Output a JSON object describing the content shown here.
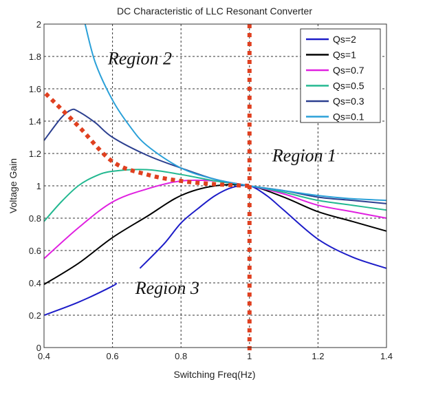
{
  "chart_data": {
    "type": "line",
    "title": "DC Characteristic of LLC Resonant Converter",
    "xlabel": "Switching Freq(Hz)",
    "ylabel": "Voltage Gain",
    "xlim": [
      0.4,
      1.4
    ],
    "ylim": [
      0,
      2
    ],
    "xticks": [
      "0.4",
      "0.6",
      "0.8",
      "1",
      "1.2",
      "1.4"
    ],
    "yticks": [
      "0",
      "0.2",
      "0.4",
      "0.6",
      "0.8",
      "1",
      "1.2",
      "1.4",
      "1.6",
      "1.8",
      "2"
    ],
    "grid": true,
    "legend_position": "top-right",
    "series": [
      {
        "name": "Qs=2",
        "color": "#1c1cc8",
        "points": [
          [
            0.4,
            0.2
          ],
          [
            0.5,
            0.28
          ],
          [
            0.6,
            0.38
          ],
          [
            0.61,
            0.4
          ],
          [
            0.68,
            0.49
          ],
          [
            0.75,
            0.64
          ],
          [
            0.8,
            0.77
          ],
          [
            0.85,
            0.86
          ],
          [
            0.9,
            0.94
          ],
          [
            0.95,
            0.99
          ],
          [
            1.0,
            1.0
          ],
          [
            1.05,
            0.94
          ],
          [
            1.1,
            0.85
          ],
          [
            1.2,
            0.67
          ],
          [
            1.3,
            0.56
          ],
          [
            1.4,
            0.49
          ]
        ],
        "gap": [
          0.61,
          0.68
        ]
      },
      {
        "name": "Qs=1",
        "color": "#000000",
        "points": [
          [
            0.4,
            0.39
          ],
          [
            0.5,
            0.52
          ],
          [
            0.6,
            0.68
          ],
          [
            0.7,
            0.81
          ],
          [
            0.8,
            0.94
          ],
          [
            0.9,
            1.0
          ],
          [
            1.0,
            1.0
          ],
          [
            1.1,
            0.93
          ],
          [
            1.2,
            0.84
          ],
          [
            1.3,
            0.78
          ],
          [
            1.4,
            0.72
          ]
        ]
      },
      {
        "name": "Qs=0.7",
        "color": "#e020e0",
        "points": [
          [
            0.4,
            0.55
          ],
          [
            0.5,
            0.74
          ],
          [
            0.6,
            0.9
          ],
          [
            0.7,
            0.98
          ],
          [
            0.8,
            1.03
          ],
          [
            0.9,
            1.03
          ],
          [
            1.0,
            1.0
          ],
          [
            1.1,
            0.95
          ],
          [
            1.2,
            0.88
          ],
          [
            1.3,
            0.84
          ],
          [
            1.4,
            0.8
          ]
        ]
      },
      {
        "name": "Qs=0.5",
        "color": "#22b890",
        "points": [
          [
            0.4,
            0.78
          ],
          [
            0.45,
            0.9
          ],
          [
            0.5,
            1.0
          ],
          [
            0.55,
            1.06
          ],
          [
            0.6,
            1.09
          ],
          [
            0.7,
            1.1
          ],
          [
            0.8,
            1.07
          ],
          [
            0.9,
            1.03
          ],
          [
            1.0,
            1.0
          ],
          [
            1.1,
            0.96
          ],
          [
            1.2,
            0.91
          ],
          [
            1.3,
            0.88
          ],
          [
            1.4,
            0.85
          ]
        ]
      },
      {
        "name": "Qs=0.3",
        "color": "#2b3f8f",
        "points": [
          [
            0.4,
            1.28
          ],
          [
            0.45,
            1.42
          ],
          [
            0.48,
            1.47
          ],
          [
            0.5,
            1.46
          ],
          [
            0.55,
            1.39
          ],
          [
            0.6,
            1.3
          ],
          [
            0.7,
            1.19
          ],
          [
            0.8,
            1.11
          ],
          [
            0.9,
            1.04
          ],
          [
            1.0,
            1.0
          ],
          [
            1.1,
            0.97
          ],
          [
            1.2,
            0.93
          ],
          [
            1.3,
            0.91
          ],
          [
            1.4,
            0.89
          ]
        ]
      },
      {
        "name": "Qs=0.1",
        "color": "#2aa0d8",
        "points": [
          [
            0.52,
            2.0
          ],
          [
            0.55,
            1.76
          ],
          [
            0.6,
            1.53
          ],
          [
            0.65,
            1.37
          ],
          [
            0.7,
            1.25
          ],
          [
            0.8,
            1.11
          ],
          [
            0.9,
            1.04
          ],
          [
            1.0,
            1.0
          ],
          [
            1.1,
            0.97
          ],
          [
            1.2,
            0.94
          ],
          [
            1.3,
            0.92
          ],
          [
            1.4,
            0.91
          ]
        ]
      }
    ],
    "boundary": {
      "color": "#e04020",
      "points": [
        [
          0.405,
          1.57
        ],
        [
          0.5,
          1.37
        ],
        [
          0.6,
          1.15
        ],
        [
          0.7,
          1.07
        ],
        [
          0.8,
          1.03
        ],
        [
          0.9,
          1.01
        ],
        [
          1.0,
          1.0
        ]
      ]
    },
    "resonance_line": {
      "color": "#e04020",
      "x": 1.0
    },
    "annotations": [
      {
        "text": "Region 1",
        "x": 1.16,
        "y": 1.19
      },
      {
        "text": "Region 2",
        "x": 0.68,
        "y": 1.79
      },
      {
        "text": "Region 3",
        "x": 0.76,
        "y": 0.37
      }
    ]
  }
}
